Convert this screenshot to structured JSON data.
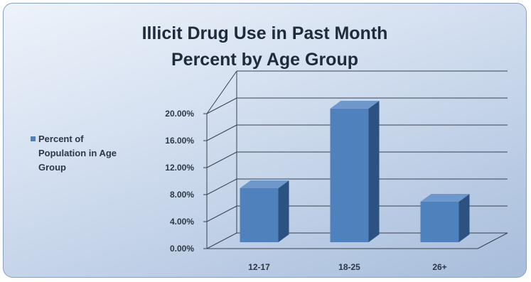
{
  "title_lines": [
    "Illicit Drug Use in Past Month",
    "Percent by Age Group"
  ],
  "legend": {
    "label": "Percent of Population in Age Group"
  },
  "colors": {
    "bar_front": "#4f81bd",
    "bar_side": "#2c5282",
    "bar_top": "#6e98cc",
    "grid": "#3a4250"
  },
  "chart_data": {
    "type": "bar",
    "title": "Illicit Drug Use in Past Month Percent by Age Group",
    "categories": [
      "12-17",
      "18-25",
      "26+"
    ],
    "series": [
      {
        "name": "Percent of Population in Age Group",
        "values": [
          8.0,
          19.8,
          6.0
        ]
      }
    ],
    "y_ticks": [
      "0.00%",
      "4.00%",
      "8.00%",
      "12.00%",
      "16.00%",
      "20.00%"
    ],
    "ylim": [
      0,
      20
    ],
    "y_unit": "percent",
    "grid": true,
    "three_d": true,
    "legend_position": "left"
  }
}
